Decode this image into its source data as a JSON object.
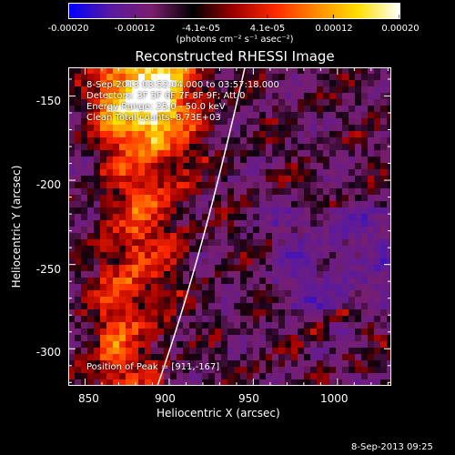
{
  "colorbar": {
    "tick_labels": [
      "-0.00020",
      "-0.00012",
      "-4.1e-05",
      "4.1e-05",
      "0.00012",
      "0.00020"
    ],
    "units": "(photons cm⁻² s⁻¹ asec⁻²)",
    "colors": [
      "#0000ff",
      "#5a1a9e",
      "#7a1e6e",
      "#000000",
      "#a00000",
      "#ff2a00",
      "#ff8c00",
      "#ffe000",
      "#ffffff"
    ]
  },
  "chart_data": {
    "type": "heatmap",
    "title": "Reconstructed RHESSI Image",
    "xlabel": "Heliocentric X (arcsec)",
    "ylabel": "Heliocentric Y (arcsec)",
    "xlim": [
      840,
      1032
    ],
    "ylim": [
      -322,
      -133
    ],
    "xticks": [
      "850",
      "900",
      "950",
      "1000"
    ],
    "yticks": [
      "-150",
      "-200",
      "-250",
      "-300"
    ],
    "clim": [
      -0.0002,
      0.0002
    ],
    "annotations": [
      "8-Sep-2013 03:52:04.000 to 03:57:18.000",
      "Detectors: 3F 5F 6F 7F 8F 9F; Att 0",
      "Energy Range: 25.0 - 50.0 keV",
      "Clean     Total counts: 8.73E+03"
    ],
    "peak_label": "Position of Peak = [911,-167]",
    "peak": [
      911,
      -167
    ],
    "limb_color": "#ffffff"
  },
  "footer": {
    "timestamp": "8-Sep-2013 09:25"
  }
}
